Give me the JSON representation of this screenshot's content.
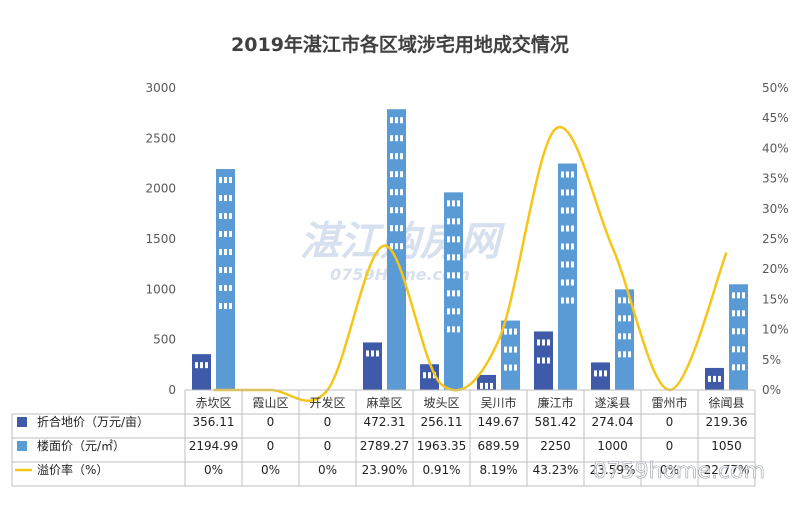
{
  "chart_data": {
    "type": "bar",
    "title": "2019年湛江市各区域涉宅用地成交情况",
    "categories": [
      "赤坎区",
      "霞山区",
      "开发区",
      "麻章区",
      "坡头区",
      "吴川市",
      "廉江市",
      "遂溪县",
      "雷州市",
      "徐闻县"
    ],
    "series": [
      {
        "name": "折合地价（万元/亩）",
        "type": "bar",
        "axis": "left",
        "color": "#3e5aa8",
        "values": [
          356.11,
          0,
          0,
          472.31,
          256.11,
          149.67,
          581.42,
          274.04,
          0,
          219.36
        ],
        "labels": [
          "356.11",
          "0",
          "0",
          "472.31",
          "256.11",
          "149.67",
          "581.42",
          "274.04",
          "0",
          "219.36"
        ]
      },
      {
        "name": "楼面价（元/㎡）",
        "type": "bar",
        "axis": "left",
        "color": "#5b9bd5",
        "values": [
          2194.99,
          0,
          0,
          2789.27,
          1963.35,
          689.59,
          2250,
          1000,
          0,
          1050
        ],
        "labels": [
          "2194.99",
          "0",
          "0",
          "2789.27",
          "1963.35",
          "689.59",
          "2250",
          "1000",
          "0",
          "1050"
        ]
      },
      {
        "name": "溢价率（%）",
        "type": "line",
        "axis": "right",
        "color": "#f5c518",
        "values": [
          0,
          0,
          0,
          23.9,
          0.91,
          8.19,
          43.23,
          23.59,
          0,
          22.77
        ],
        "labels": [
          "0%",
          "0%",
          "0%",
          "23.90%",
          "0.91%",
          "8.19%",
          "43.23%",
          "23.59%",
          "0%",
          "22.77%"
        ]
      }
    ],
    "yleft": {
      "min": 0,
      "max": 3000,
      "ticks": [
        "0",
        "500",
        "1000",
        "1500",
        "2000",
        "2500",
        "3000"
      ]
    },
    "yright": {
      "min": 0,
      "max": 50,
      "ticks": [
        "0%",
        "5%",
        "10%",
        "15%",
        "20%",
        "25%",
        "30%",
        "35%",
        "40%",
        "45%",
        "50%"
      ]
    },
    "watermark": "湛江购房网",
    "watermark_sub": "0759Home.com",
    "corner_watermark": "0759home.com"
  }
}
